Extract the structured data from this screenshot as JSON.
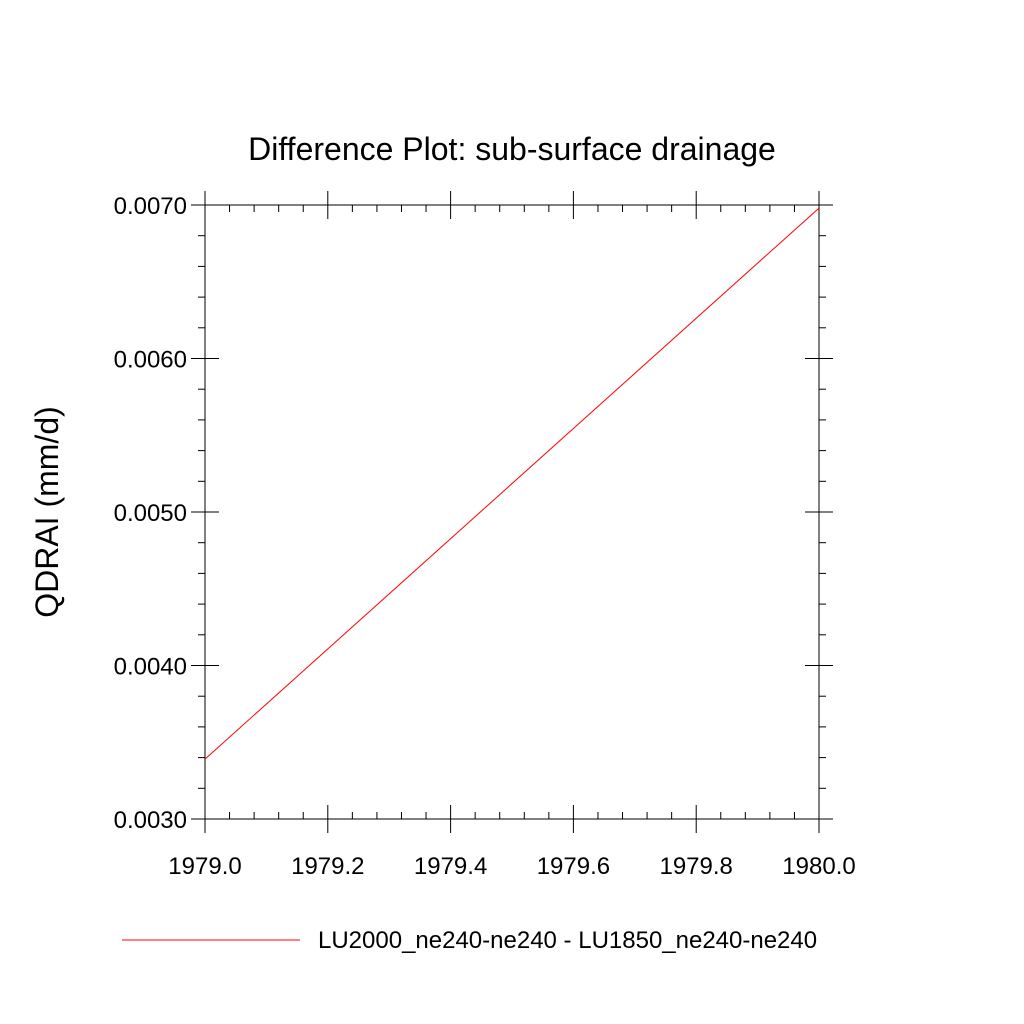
{
  "chart_data": {
    "type": "line",
    "title": "Difference Plot: sub-surface drainage",
    "xlabel": "",
    "ylabel": "QDRAI  (mm/d)",
    "xlim": [
      1979.0,
      1980.0
    ],
    "ylim": [
      0.003,
      0.007
    ],
    "x_ticks": [
      "1979.0",
      "1979.2",
      "1979.4",
      "1979.6",
      "1979.8",
      "1980.0"
    ],
    "x_tick_values": [
      1979.0,
      1979.2,
      1979.4,
      1979.6,
      1979.8,
      1980.0
    ],
    "y_ticks": [
      "0.0030",
      "0.0040",
      "0.0050",
      "0.0060",
      "0.0070"
    ],
    "y_tick_values": [
      0.003,
      0.004,
      0.005,
      0.006,
      0.007
    ],
    "x_minor_per_major": 4,
    "y_minor_per_major": 4,
    "grid": false,
    "legend_position": "bottom",
    "series": [
      {
        "name": "LU2000_ne240-ne240 - LU1850_ne240-ne240",
        "color": "#ff0000",
        "x": [
          1979.0,
          1980.0
        ],
        "y": [
          0.00339,
          0.00698
        ]
      }
    ]
  }
}
